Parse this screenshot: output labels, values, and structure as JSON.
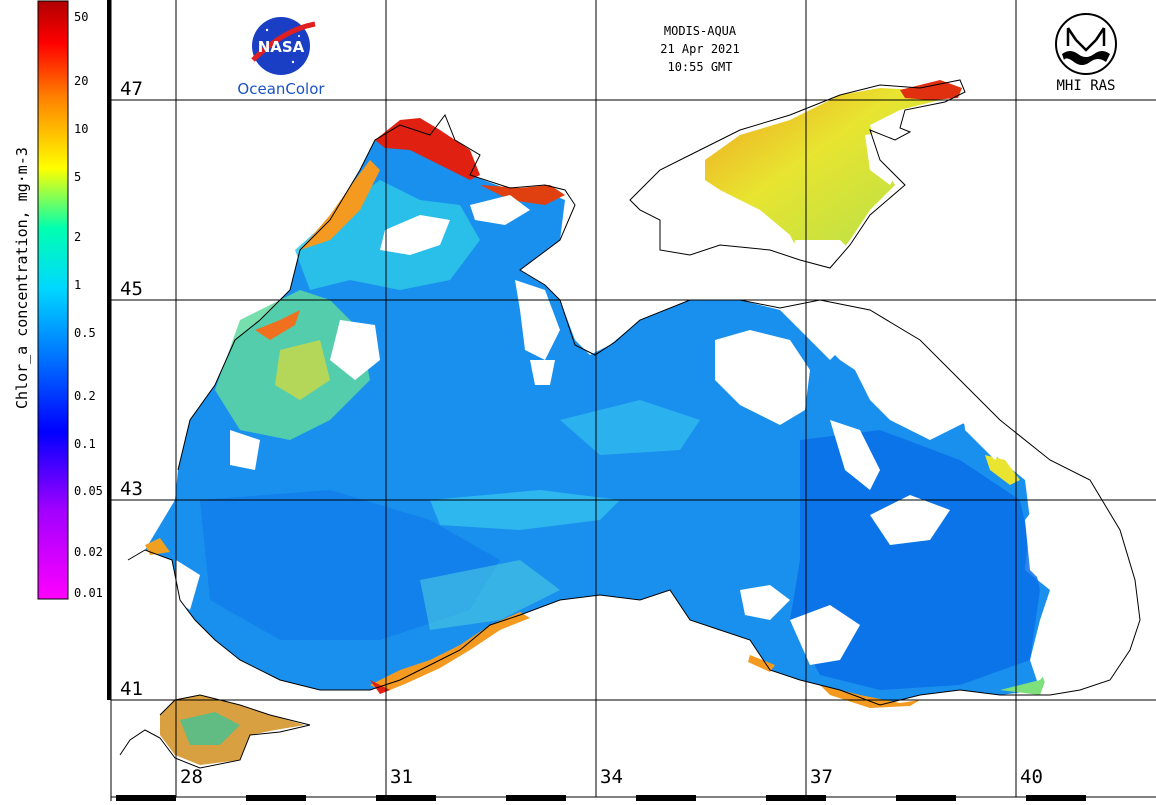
{
  "header": {
    "sensor": "MODIS-AQUA",
    "date": "21 Apr 2021",
    "time": "10:55 GMT"
  },
  "logos": {
    "left": {
      "mark": "NASA",
      "caption": "OceanColor",
      "icon": "nasa-meatball-icon"
    },
    "right": {
      "caption": "MHI RAS",
      "icon": "mhi-ras-emblem-icon"
    }
  },
  "colorbar": {
    "title": "Chlor_a concentration, mg·m-3",
    "scale": "log",
    "ticks": [
      "50",
      "20",
      "10",
      "5",
      "2",
      "1",
      "0.5",
      "0.2",
      "0.1",
      "0.05",
      "0.02",
      "0.01"
    ],
    "colors": [
      "#ff00ff",
      "#a000ff",
      "#0000ff",
      "#0070ff",
      "#00d8ff",
      "#00ffb0",
      "#ffff00",
      "#ff8000",
      "#ff0000",
      "#b00000"
    ]
  },
  "grid": {
    "lat_labels": [
      "47",
      "45",
      "43",
      "41"
    ],
    "lon_labels": [
      "28",
      "31",
      "34",
      "37",
      "40"
    ]
  },
  "palette": {
    "open_sea": "#1a90ee",
    "deep_blue": "#0a70e8",
    "shelf": "#2ec8e8",
    "coastal_green": "#7ee07a",
    "azov_yellow": "#e8e430",
    "coastal_orange": "#f49a20",
    "coastal_red": "#e02010",
    "cloud": "#ffffff",
    "coast_line": "#000000"
  }
}
